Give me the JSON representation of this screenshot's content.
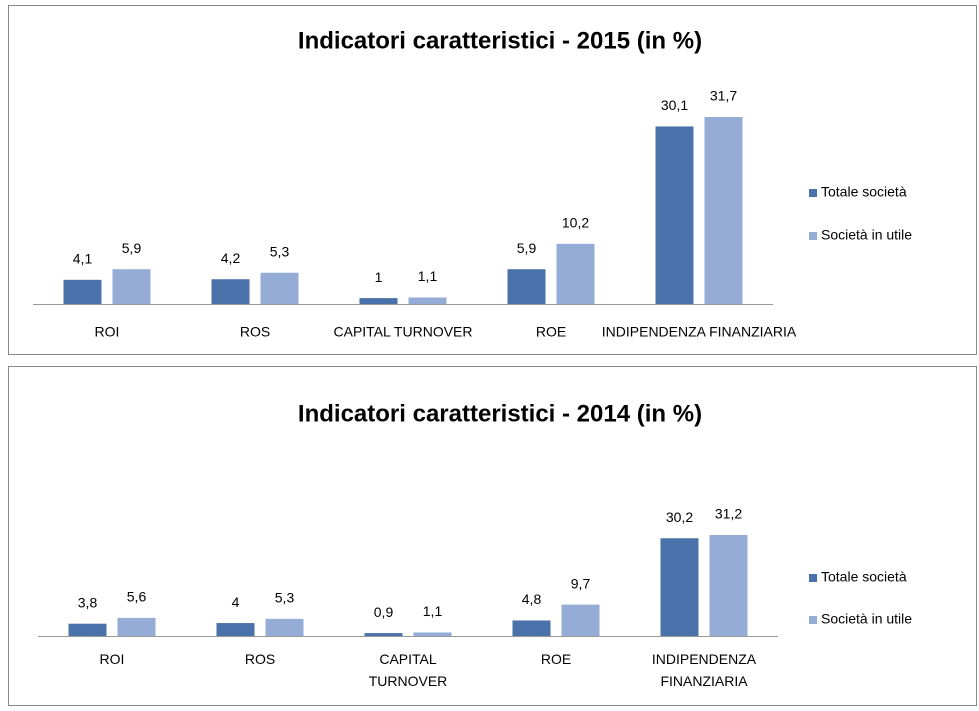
{
  "chart_data": [
    {
      "type": "bar",
      "title": "Indicatori caratteristici - 2015 (in %)",
      "categories": [
        "ROI",
        "ROS",
        "CAPITAL TURNOVER",
        "ROE",
        "INDIPENDENZA FINANZIARIA"
      ],
      "series": [
        {
          "name": "Totale società",
          "color": "#4a72aa",
          "values": [
            4.1,
            4.2,
            1,
            5.9,
            30.1
          ],
          "value_labels": [
            "4,1",
            "4,2",
            "1",
            "5,9",
            "30,1"
          ]
        },
        {
          "name": "Società in utile",
          "color": "#95add6",
          "values": [
            5.9,
            5.3,
            1.1,
            10.2,
            31.7
          ],
          "value_labels": [
            "5,9",
            "5,3",
            "1,1",
            "10,2",
            "31,7"
          ]
        }
      ],
      "legend": "right"
    },
    {
      "type": "bar",
      "title": "Indicatori caratteristici - 2014 (in %)",
      "categories": [
        "ROI",
        "ROS",
        "CAPITAL TURNOVER",
        "ROE",
        "INDIPENDENZA FINANZIARIA"
      ],
      "series": [
        {
          "name": "Totale società",
          "color": "#4a72aa",
          "values": [
            3.8,
            4,
            0.9,
            4.8,
            30.2
          ],
          "value_labels": [
            "3,8",
            "4",
            "0,9",
            "4,8",
            "30,2"
          ]
        },
        {
          "name": "Società in utile",
          "color": "#95add6",
          "values": [
            5.6,
            5.3,
            1.1,
            9.7,
            31.2
          ],
          "value_labels": [
            "5,6",
            "5,3",
            "1,1",
            "9,7",
            "31,2"
          ]
        }
      ],
      "legend": "right"
    }
  ]
}
